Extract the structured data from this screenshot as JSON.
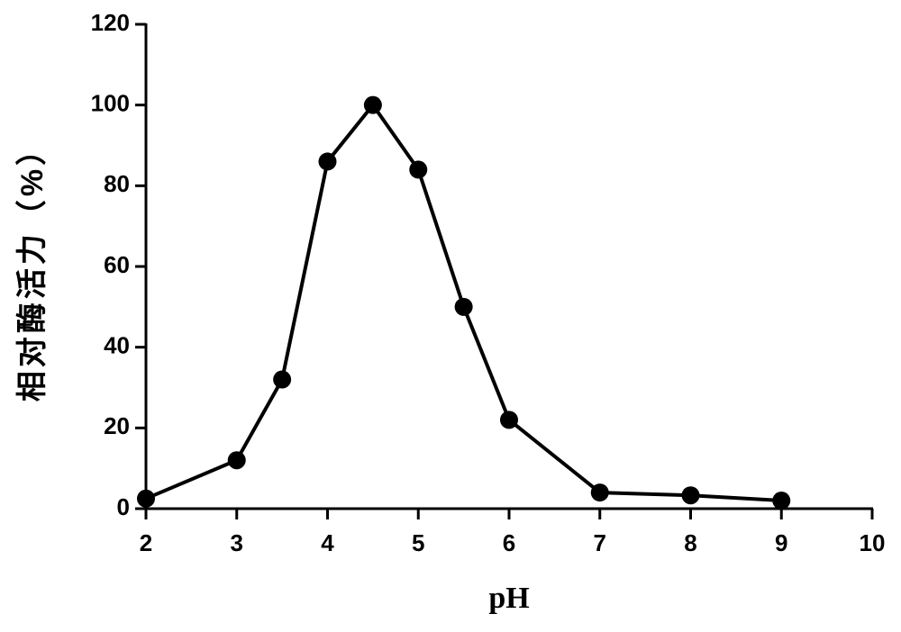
{
  "chart_data": {
    "type": "line",
    "x_label": "pH",
    "y_label": "相对酶活力（%）",
    "x": [
      2,
      3,
      3.5,
      4,
      4.5,
      5,
      5.5,
      6,
      7,
      8,
      9
    ],
    "series": [
      {
        "color": "#000000",
        "values": [
          2.5,
          12,
          32,
          86,
          100,
          84,
          50,
          22,
          4,
          3.3,
          2
        ]
      }
    ],
    "xlim": [
      2,
      10
    ],
    "xticks": [
      2,
      3,
      4,
      5,
      6,
      7,
      8,
      9,
      10
    ],
    "ylim": [
      0,
      120
    ],
    "yticks": [
      0,
      20,
      40,
      60,
      80,
      100,
      120
    ],
    "grid": false
  }
}
